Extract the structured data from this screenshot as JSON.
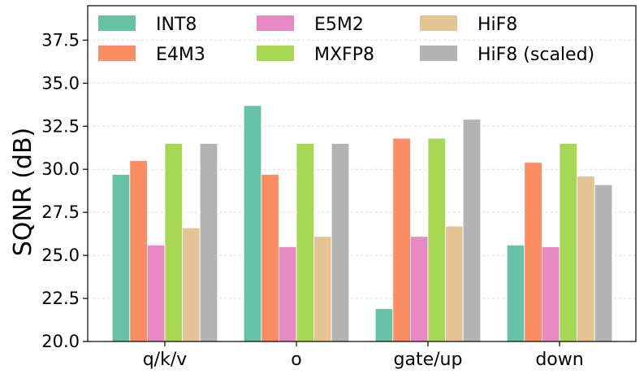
{
  "chart_data": {
    "type": "bar",
    "title": "",
    "xlabel": "",
    "ylabel": "SQNR (dB)",
    "ylim": [
      20.0,
      39.5
    ],
    "yticks": [
      20.0,
      22.5,
      25.0,
      27.5,
      30.0,
      32.5,
      35.0,
      37.5
    ],
    "ytick_labels": [
      "20.0",
      "22.5",
      "25.0",
      "27.5",
      "30.0",
      "32.5",
      "35.0",
      "37.5"
    ],
    "grid": "horizontal dashed",
    "legend_position": "top",
    "categories": [
      "q/k/v",
      "o",
      "gate/up",
      "down"
    ],
    "series": [
      {
        "name": "INT8",
        "color": "#66c2a5",
        "values": [
          29.7,
          33.7,
          21.9,
          25.6
        ]
      },
      {
        "name": "E4M3",
        "color": "#fc8d62",
        "values": [
          30.5,
          29.7,
          31.8,
          30.4
        ]
      },
      {
        "name": "E5M2",
        "color": "#e78ac3",
        "values": [
          25.6,
          25.5,
          26.1,
          25.5
        ]
      },
      {
        "name": "MXFP8",
        "color": "#a6d854",
        "values": [
          31.5,
          31.5,
          31.8,
          31.5
        ]
      },
      {
        "name": "HiF8",
        "color": "#e5c494",
        "values": [
          26.6,
          26.1,
          26.7,
          29.6
        ]
      },
      {
        "name": "HiF8 (scaled)",
        "color": "#b3b3b3",
        "values": [
          31.5,
          31.5,
          32.9,
          29.1
        ]
      }
    ]
  }
}
